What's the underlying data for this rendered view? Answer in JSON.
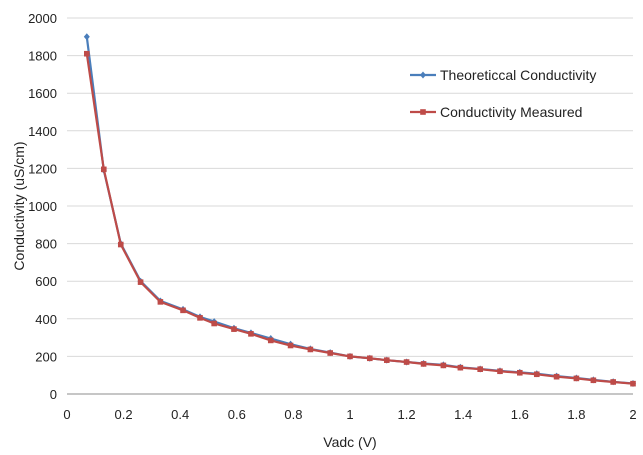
{
  "chart_data": {
    "type": "line",
    "xlabel": "Vadc (V)",
    "ylabel": "Conductivity (uS/cm)",
    "xlim": [
      0,
      2
    ],
    "ylim": [
      0,
      2000
    ],
    "x_ticks": [
      "0",
      "0.2",
      "0.4",
      "0.6",
      "0.8",
      "1",
      "1.2",
      "1.4",
      "1.6",
      "1.8",
      "2"
    ],
    "y_ticks": [
      "0",
      "200",
      "400",
      "600",
      "800",
      "1000",
      "1200",
      "1400",
      "1600",
      "1800",
      "2000"
    ],
    "grid": "horizontal",
    "legend_position": "right",
    "series": [
      {
        "name": "Theoreticcal Conductivity",
        "color": "#4a7ebb",
        "marker": "diamond",
        "x": [
          0.07,
          0.13,
          0.19,
          0.26,
          0.33,
          0.41,
          0.47,
          0.52,
          0.59,
          0.65,
          0.72,
          0.79,
          0.86,
          0.93,
          1.0,
          1.07,
          1.13,
          1.2,
          1.26,
          1.33,
          1.39,
          1.46,
          1.53,
          1.6,
          1.66,
          1.73,
          1.8,
          1.86,
          1.93,
          2.0
        ],
        "y": [
          1900,
          1190,
          800,
          600,
          495,
          450,
          410,
          385,
          350,
          325,
          295,
          265,
          240,
          220,
          200,
          190,
          180,
          170,
          162,
          155,
          142,
          133,
          123,
          115,
          108,
          95,
          85,
          75,
          65,
          56
        ]
      },
      {
        "name": "Conductivity Measured",
        "color": "#be4b48",
        "marker": "square",
        "x": [
          0.07,
          0.13,
          0.19,
          0.26,
          0.33,
          0.41,
          0.47,
          0.52,
          0.59,
          0.65,
          0.72,
          0.79,
          0.86,
          0.93,
          1.0,
          1.07,
          1.13,
          1.2,
          1.26,
          1.33,
          1.39,
          1.46,
          1.53,
          1.6,
          1.66,
          1.73,
          1.8,
          1.86,
          1.93,
          2.0
        ],
        "y": [
          1810,
          1195,
          795,
          595,
          490,
          445,
          405,
          375,
          345,
          320,
          285,
          258,
          237,
          218,
          200,
          190,
          180,
          170,
          160,
          152,
          140,
          132,
          121,
          113,
          105,
          92,
          83,
          73,
          64,
          55
        ]
      }
    ]
  }
}
